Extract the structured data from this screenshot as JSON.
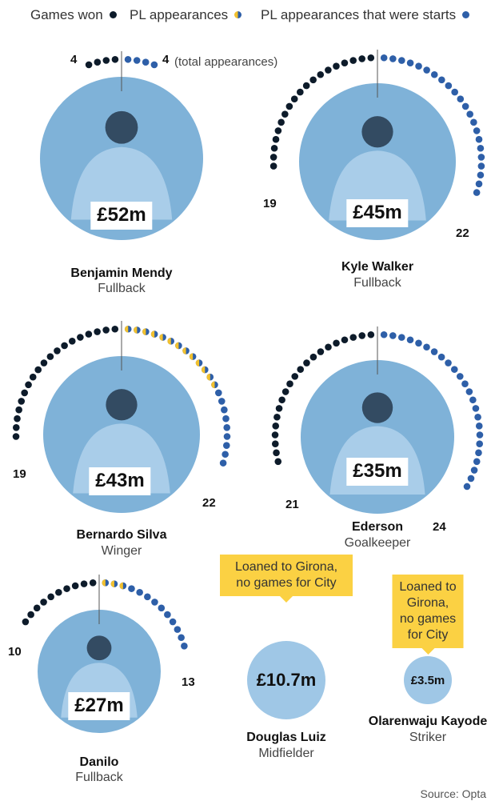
{
  "legend": {
    "won": "Games won",
    "apps": "PL appearances",
    "starts": "PL appearances that were starts"
  },
  "colors": {
    "won": "#0d1b2a",
    "start": "#2e5fa8",
    "sub": "#f2c12e",
    "photo": "#7fb2d8",
    "disc": "#9fc7e6",
    "callout": "#fbd143"
  },
  "total_note": "(total appearances)",
  "source": "Source: Opta",
  "chart_data": {
    "type": "radial-dot",
    "players": [
      {
        "name": "Benjamin Mendy",
        "position": "Fullback",
        "fee": "£52m",
        "won": 4,
        "apps": 4,
        "starts": 4
      },
      {
        "name": "Kyle Walker",
        "position": "Fullback",
        "fee": "£45m",
        "won": 19,
        "apps": 22,
        "starts": 22
      },
      {
        "name": "Bernardo Silva",
        "position": "Winger",
        "fee": "£43m",
        "won": 19,
        "apps": 22,
        "starts": 9
      },
      {
        "name": "Ederson",
        "position": "Goalkeeper",
        "fee": "£35m",
        "won": 21,
        "apps": 24,
        "starts": 24
      },
      {
        "name": "Danilo",
        "position": "Fullback",
        "fee": "£27m",
        "won": 10,
        "apps": 13,
        "starts": 10
      },
      {
        "name": "Douglas Luiz",
        "position": "Midfielder",
        "fee": "£10.7m",
        "won": 0,
        "apps": 0,
        "starts": 0,
        "note": "Loaned to Girona, no games for City"
      },
      {
        "name": "Olarenwaju Kayode",
        "position": "Striker",
        "fee": "£3.5m",
        "won": 0,
        "apps": 0,
        "starts": 0,
        "note": "Loaned to Girona, no games for City"
      }
    ]
  }
}
